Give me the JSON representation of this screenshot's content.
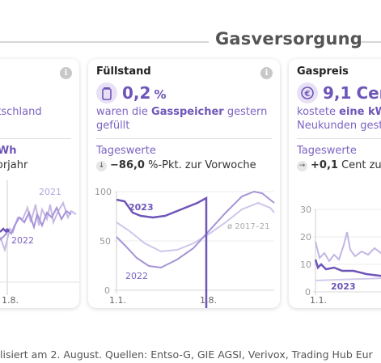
{
  "section": {
    "title": "Gasversorgung"
  },
  "cards": [
    {
      "desc_line1": "utschland",
      "value_text": "TWh",
      "change_text": "Vorjahr",
      "chart_data": {
        "type": "line",
        "series_labels": [
          "2021",
          "2022"
        ],
        "xticks": [
          "1.8."
        ]
      }
    },
    {
      "title": "Füllstand",
      "value": "0,2",
      "unit": "%",
      "desc_pre": "waren die ",
      "desc_bold": "Gasspeicher",
      "desc_post": " gestern",
      "desc_line2": "gefüllt",
      "sub_label": "Tageswerte",
      "change_arrow": "↓",
      "change_value": "−86,0",
      "change_unit": "%-Pkt. zur Vorwoche",
      "chart_data": {
        "type": "line",
        "yticks": [
          "100",
          "50",
          "0"
        ],
        "xticks": [
          "1.1.",
          "1.8."
        ],
        "series_labels": [
          "2023",
          "2022",
          "ø 2017–21"
        ],
        "ylim": [
          0,
          100
        ]
      }
    },
    {
      "title": "Gaspreis",
      "value": "9,1",
      "unit": "Cen",
      "desc_pre": "kostete ",
      "desc_bold": "eine kW",
      "desc_line2": "Neukunden gest",
      "sub_label": "Tageswerte",
      "change_arrow": "→",
      "change_value": "+0,1",
      "change_unit": "Cent zur",
      "chart_data": {
        "type": "line",
        "yticks": [
          "30",
          "20",
          "10",
          "0"
        ],
        "xticks": [
          "1.1."
        ],
        "series_labels": [
          "2023"
        ]
      }
    }
  ],
  "footer": {
    "text": "lisiert am 2. August. Quellen: Entso-G, GIE AGSI, Verivox, Trading Hub Eur"
  }
}
